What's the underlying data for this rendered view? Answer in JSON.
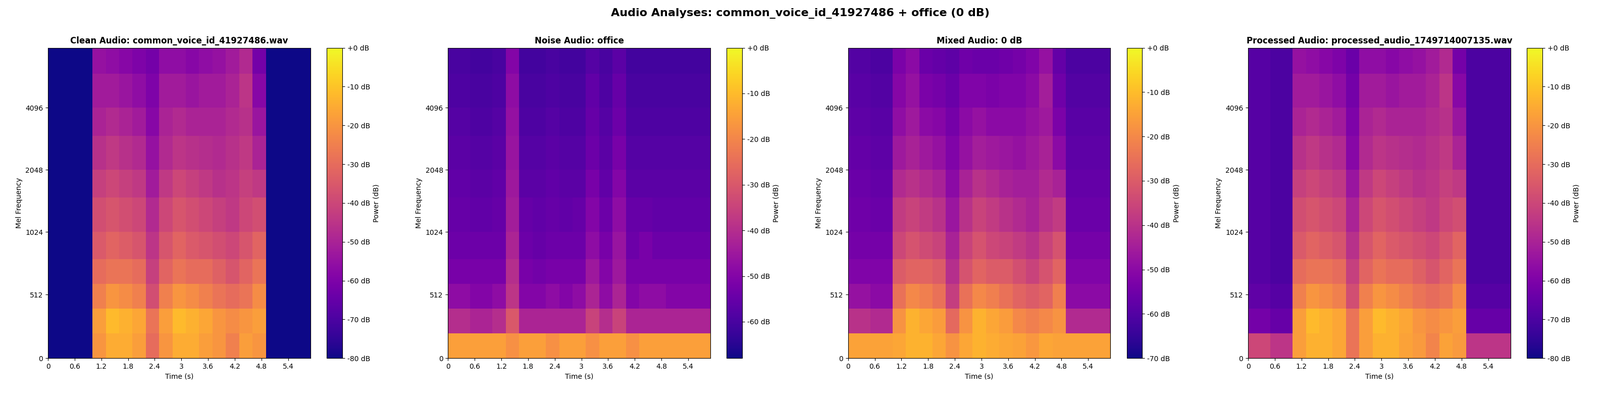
{
  "title": "Audio Analyses: common_voice_id_41927486 + office (0 dB)",
  "chart_data": [
    {
      "type": "heatmap",
      "title": "Clean Audio: common_voice_id_41927486.wav",
      "x_label": "Time (s)",
      "y_label": "Mel Frequency",
      "color": "plasma",
      "x": [
        0,
        0.5,
        1.0,
        1.3,
        1.6,
        1.9,
        2.2,
        2.5,
        2.8,
        3.1,
        3.4,
        3.7,
        4.0,
        4.3,
        4.6,
        4.9,
        5.9
      ],
      "y": [
        0,
        200,
        400,
        600,
        800,
        1024,
        1500,
        2048,
        3000,
        4096,
        6000,
        8000
      ],
      "xlim": [
        0,
        5.9
      ],
      "xticks": [
        0,
        0.6,
        1.2,
        1.8,
        2.4,
        3,
        3.6,
        4.2,
        4.8,
        5.4
      ],
      "ylim": [
        0,
        8000
      ],
      "yticks": [
        0,
        512,
        1024,
        2048,
        4096
      ],
      "cells": [
        [
          -80,
          -80,
          -20,
          -15,
          -15,
          -18,
          -30,
          -20,
          -15,
          -15,
          -18,
          -20,
          -25,
          -18,
          -20,
          -80
        ],
        [
          -80,
          -80,
          -18,
          -12,
          -14,
          -16,
          -28,
          -18,
          -12,
          -14,
          -16,
          -20,
          -22,
          -20,
          -18,
          -80
        ],
        [
          -80,
          -80,
          -25,
          -20,
          -22,
          -25,
          -38,
          -25,
          -20,
          -22,
          -25,
          -28,
          -30,
          -28,
          -22,
          -80
        ],
        [
          -80,
          -80,
          -30,
          -28,
          -28,
          -30,
          -42,
          -32,
          -28,
          -30,
          -30,
          -33,
          -36,
          -32,
          -28,
          -80
        ],
        [
          -80,
          -80,
          -35,
          -32,
          -34,
          -36,
          -45,
          -36,
          -32,
          -35,
          -36,
          -38,
          -40,
          -36,
          -32,
          -80
        ],
        [
          -80,
          -80,
          -38,
          -36,
          -38,
          -40,
          -48,
          -40,
          -36,
          -38,
          -40,
          -42,
          -44,
          -40,
          -38,
          -80
        ],
        [
          -80,
          -80,
          -42,
          -40,
          -42,
          -44,
          -52,
          -44,
          -40,
          -42,
          -44,
          -46,
          -45,
          -42,
          -44,
          -80
        ],
        [
          -80,
          -80,
          -46,
          -44,
          -46,
          -48,
          -55,
          -48,
          -45,
          -46,
          -47,
          -48,
          -46,
          -44,
          -50,
          -80
        ],
        [
          -80,
          -80,
          -50,
          -48,
          -50,
          -52,
          -58,
          -50,
          -48,
          -50,
          -50,
          -50,
          -48,
          -46,
          -54,
          -80
        ],
        [
          -80,
          -80,
          -52,
          -52,
          -54,
          -56,
          -60,
          -52,
          -52,
          -54,
          -52,
          -52,
          -50,
          -45,
          -58,
          -80
        ],
        [
          -80,
          -80,
          -55,
          -56,
          -58,
          -60,
          -62,
          -56,
          -56,
          -58,
          -56,
          -55,
          -52,
          -48,
          -62,
          -80
        ]
      ],
      "colorbar": {
        "label": "Power (dB)",
        "range": [
          -80,
          0
        ],
        "ticks": [
          {
            "value": 0,
            "label": "+0 dB"
          },
          {
            "value": -10,
            "label": "-10 dB"
          },
          {
            "value": -20,
            "label": "-20 dB"
          },
          {
            "value": -30,
            "label": "-30 dB"
          },
          {
            "value": -40,
            "label": "-40 dB"
          },
          {
            "value": -50,
            "label": "-50 dB"
          },
          {
            "value": -60,
            "label": "-60 dB"
          },
          {
            "value": -70,
            "label": "-70 dB"
          },
          {
            "value": -80,
            "label": "-80 dB"
          }
        ]
      }
    },
    {
      "type": "heatmap",
      "title": "Noise Audio: office",
      "x_label": "Time (s)",
      "y_label": "Mel Frequency",
      "color": "plasma",
      "x": [
        0,
        0.5,
        1.0,
        1.3,
        1.6,
        1.9,
        2.2,
        2.5,
        2.8,
        3.1,
        3.4,
        3.7,
        4.0,
        4.3,
        4.6,
        4.9,
        5.9
      ],
      "y": [
        0,
        200,
        400,
        600,
        800,
        1024,
        1500,
        2048,
        3000,
        4096,
        6000,
        8000
      ],
      "xlim": [
        0,
        5.9
      ],
      "xticks": [
        0,
        0.6,
        1.2,
        1.8,
        2.4,
        3,
        3.6,
        4.2,
        4.8,
        5.4
      ],
      "ylim": [
        0,
        8000
      ],
      "yticks": [
        0,
        512,
        1024,
        2048,
        4096
      ],
      "cells": [
        [
          -15,
          -15,
          -15,
          -18,
          -15,
          -15,
          -18,
          -15,
          -15,
          -18,
          -15,
          -15,
          -18,
          -15,
          -15,
          -15
        ],
        [
          -40,
          -42,
          -40,
          -30,
          -42,
          -42,
          -42,
          -42,
          -42,
          -35,
          -40,
          -35,
          -42,
          -42,
          -42,
          -42
        ],
        [
          -48,
          -50,
          -48,
          -38,
          -50,
          -50,
          -48,
          -50,
          -48,
          -42,
          -48,
          -42,
          -50,
          -48,
          -48,
          -50
        ],
        [
          -52,
          -52,
          -52,
          -40,
          -52,
          -53,
          -52,
          -52,
          -52,
          -45,
          -50,
          -45,
          -52,
          -52,
          -52,
          -52
        ],
        [
          -54,
          -54,
          -54,
          -42,
          -54,
          -55,
          -54,
          -54,
          -54,
          -48,
          -52,
          -46,
          -54,
          -52,
          -54,
          -54
        ],
        [
          -55,
          -56,
          -55,
          -44,
          -55,
          -56,
          -55,
          -56,
          -55,
          -50,
          -54,
          -48,
          -55,
          -55,
          -56,
          -56
        ],
        [
          -56,
          -57,
          -56,
          -45,
          -57,
          -57,
          -56,
          -57,
          -57,
          -52,
          -56,
          -50,
          -57,
          -57,
          -57,
          -57
        ],
        [
          -57,
          -58,
          -57,
          -46,
          -58,
          -58,
          -57,
          -58,
          -58,
          -54,
          -57,
          -52,
          -58,
          -58,
          -58,
          -58
        ],
        [
          -58,
          -59,
          -58,
          -47,
          -59,
          -59,
          -58,
          -59,
          -59,
          -55,
          -58,
          -54,
          -59,
          -59,
          -59,
          -59
        ],
        [
          -59,
          -60,
          -59,
          -48,
          -60,
          -60,
          -59,
          -60,
          -60,
          -56,
          -59,
          -55,
          -60,
          -60,
          -60,
          -60
        ],
        [
          -60,
          -61,
          -60,
          -50,
          -61,
          -61,
          -60,
          -61,
          -61,
          -58,
          -60,
          -57,
          -61,
          -61,
          -61,
          -61
        ]
      ],
      "colorbar": {
        "label": "Power (dB)",
        "range": [
          -68,
          0
        ],
        "ticks": [
          {
            "value": 0,
            "label": "+0 dB"
          },
          {
            "value": -10,
            "label": "-10 dB"
          },
          {
            "value": -20,
            "label": "-20 dB"
          },
          {
            "value": -30,
            "label": "-30 dB"
          },
          {
            "value": -40,
            "label": "-40 dB"
          },
          {
            "value": -50,
            "label": "-50 dB"
          },
          {
            "value": -60,
            "label": "-60 dB"
          }
        ]
      }
    },
    {
      "type": "heatmap",
      "title": "Mixed Audio: 0 dB",
      "x_label": "Time (s)",
      "y_label": "Mel Frequency",
      "color": "plasma",
      "x": [
        0,
        0.5,
        1.0,
        1.3,
        1.6,
        1.9,
        2.2,
        2.5,
        2.8,
        3.1,
        3.4,
        3.7,
        4.0,
        4.3,
        4.6,
        4.9,
        5.9
      ],
      "y": [
        0,
        200,
        400,
        600,
        800,
        1024,
        1500,
        2048,
        3000,
        4096,
        6000,
        8000
      ],
      "xlim": [
        0,
        5.9
      ],
      "xticks": [
        0,
        0.6,
        1.2,
        1.8,
        2.4,
        3,
        3.6,
        4.2,
        4.8,
        5.4
      ],
      "ylim": [
        0,
        8000
      ],
      "yticks": [
        0,
        512,
        1024,
        2048,
        4096
      ],
      "cells": [
        [
          -15,
          -15,
          -14,
          -12,
          -12,
          -14,
          -18,
          -14,
          -12,
          -13,
          -14,
          -15,
          -17,
          -14,
          -15,
          -15
        ],
        [
          -40,
          -42,
          -18,
          -12,
          -14,
          -16,
          -27,
          -18,
          -12,
          -14,
          -16,
          -20,
          -22,
          -20,
          -18,
          -42
        ],
        [
          -48,
          -50,
          -25,
          -20,
          -22,
          -25,
          -37,
          -25,
          -20,
          -22,
          -25,
          -28,
          -30,
          -28,
          -22,
          -50
        ],
        [
          -52,
          -52,
          -30,
          -28,
          -28,
          -30,
          -41,
          -32,
          -28,
          -30,
          -30,
          -33,
          -36,
          -32,
          -28,
          -52
        ],
        [
          -54,
          -54,
          -35,
          -32,
          -34,
          -36,
          -44,
          -36,
          -32,
          -35,
          -36,
          -38,
          -40,
          -36,
          -32,
          -54
        ],
        [
          -55,
          -56,
          -38,
          -36,
          -38,
          -40,
          -47,
          -40,
          -36,
          -38,
          -40,
          -42,
          -44,
          -40,
          -38,
          -56
        ],
        [
          -56,
          -57,
          -42,
          -40,
          -42,
          -44,
          -50,
          -44,
          -40,
          -42,
          -44,
          -45,
          -45,
          -42,
          -44,
          -57
        ],
        [
          -57,
          -58,
          -46,
          -44,
          -46,
          -48,
          -52,
          -48,
          -45,
          -46,
          -47,
          -48,
          -46,
          -44,
          -50,
          -58
        ],
        [
          -58,
          -59,
          -49,
          -46,
          -50,
          -51,
          -54,
          -50,
          -48,
          -50,
          -50,
          -50,
          -48,
          -46,
          -53,
          -59
        ],
        [
          -59,
          -60,
          -51,
          -48,
          -53,
          -54,
          -56,
          -52,
          -52,
          -53,
          -52,
          -52,
          -50,
          -45,
          -55,
          -60
        ],
        [
          -60,
          -61,
          -53,
          -50,
          -56,
          -57,
          -58,
          -55,
          -56,
          -56,
          -55,
          -54,
          -52,
          -48,
          -57,
          -61
        ]
      ],
      "colorbar": {
        "label": "Power (dB)",
        "range": [
          -70,
          0
        ],
        "ticks": [
          {
            "value": 0,
            "label": "+0 dB"
          },
          {
            "value": -10,
            "label": "-10 dB"
          },
          {
            "value": -20,
            "label": "-20 dB"
          },
          {
            "value": -30,
            "label": "-30 dB"
          },
          {
            "value": -40,
            "label": "-40 dB"
          },
          {
            "value": -50,
            "label": "-50 dB"
          },
          {
            "value": -60,
            "label": "-60 dB"
          },
          {
            "value": -70,
            "label": "-70 dB"
          }
        ]
      }
    },
    {
      "type": "heatmap",
      "title": "Processed Audio: processed_audio_1749714007135.wav",
      "x_label": "Time (s)",
      "y_label": "Mel Frequency",
      "color": "plasma",
      "x": [
        0,
        0.5,
        1.0,
        1.3,
        1.6,
        1.9,
        2.2,
        2.5,
        2.8,
        3.1,
        3.4,
        3.7,
        4.0,
        4.3,
        4.6,
        4.9,
        5.9
      ],
      "y": [
        0,
        200,
        400,
        600,
        800,
        1024,
        1500,
        2048,
        3000,
        4096,
        6000,
        8000
      ],
      "xlim": [
        0,
        5.9
      ],
      "xticks": [
        0,
        0.6,
        1.2,
        1.8,
        2.4,
        3,
        3.6,
        4.2,
        4.8,
        5.4
      ],
      "ylim": [
        0,
        8000
      ],
      "yticks": [
        0,
        512,
        1024,
        2048,
        4096
      ],
      "cells": [
        [
          -40,
          -45,
          -18,
          -14,
          -14,
          -16,
          -28,
          -18,
          -14,
          -14,
          -17,
          -19,
          -24,
          -17,
          -19,
          -45
        ],
        [
          -62,
          -65,
          -18,
          -12,
          -14,
          -16,
          -28,
          -18,
          -12,
          -14,
          -16,
          -20,
          -22,
          -20,
          -18,
          -65
        ],
        [
          -66,
          -68,
          -25,
          -20,
          -22,
          -25,
          -38,
          -25,
          -20,
          -22,
          -25,
          -28,
          -30,
          -28,
          -22,
          -68
        ],
        [
          -68,
          -70,
          -30,
          -28,
          -28,
          -30,
          -42,
          -32,
          -28,
          -30,
          -30,
          -33,
          -36,
          -32,
          -28,
          -70
        ],
        [
          -68,
          -70,
          -35,
          -32,
          -34,
          -36,
          -46,
          -36,
          -32,
          -35,
          -36,
          -38,
          -40,
          -36,
          -32,
          -70
        ],
        [
          -68,
          -70,
          -38,
          -36,
          -38,
          -40,
          -50,
          -40,
          -36,
          -38,
          -40,
          -42,
          -44,
          -40,
          -38,
          -70
        ],
        [
          -68,
          -70,
          -42,
          -40,
          -42,
          -44,
          -54,
          -44,
          -40,
          -42,
          -44,
          -46,
          -45,
          -42,
          -44,
          -70
        ],
        [
          -68,
          -70,
          -46,
          -44,
          -46,
          -48,
          -58,
          -48,
          -45,
          -46,
          -47,
          -48,
          -46,
          -44,
          -50,
          -70
        ],
        [
          -68,
          -70,
          -50,
          -48,
          -50,
          -52,
          -60,
          -50,
          -48,
          -50,
          -50,
          -50,
          -48,
          -46,
          -54,
          -70
        ],
        [
          -68,
          -70,
          -52,
          -52,
          -54,
          -56,
          -62,
          -52,
          -52,
          -54,
          -52,
          -52,
          -50,
          -45,
          -58,
          -70
        ],
        [
          -68,
          -70,
          -55,
          -56,
          -58,
          -60,
          -64,
          -56,
          -56,
          -58,
          -56,
          -55,
          -52,
          -48,
          -62,
          -70
        ]
      ],
      "colorbar": {
        "label": "Power (dB)",
        "range": [
          -80,
          0
        ],
        "ticks": [
          {
            "value": 0,
            "label": "+0 dB"
          },
          {
            "value": -10,
            "label": "-10 dB"
          },
          {
            "value": -20,
            "label": "-20 dB"
          },
          {
            "value": -30,
            "label": "-30 dB"
          },
          {
            "value": -40,
            "label": "-40 dB"
          },
          {
            "value": -50,
            "label": "-50 dB"
          },
          {
            "value": -60,
            "label": "-60 dB"
          },
          {
            "value": -70,
            "label": "-70 dB"
          },
          {
            "value": -80,
            "label": "-80 dB"
          }
        ]
      }
    }
  ]
}
